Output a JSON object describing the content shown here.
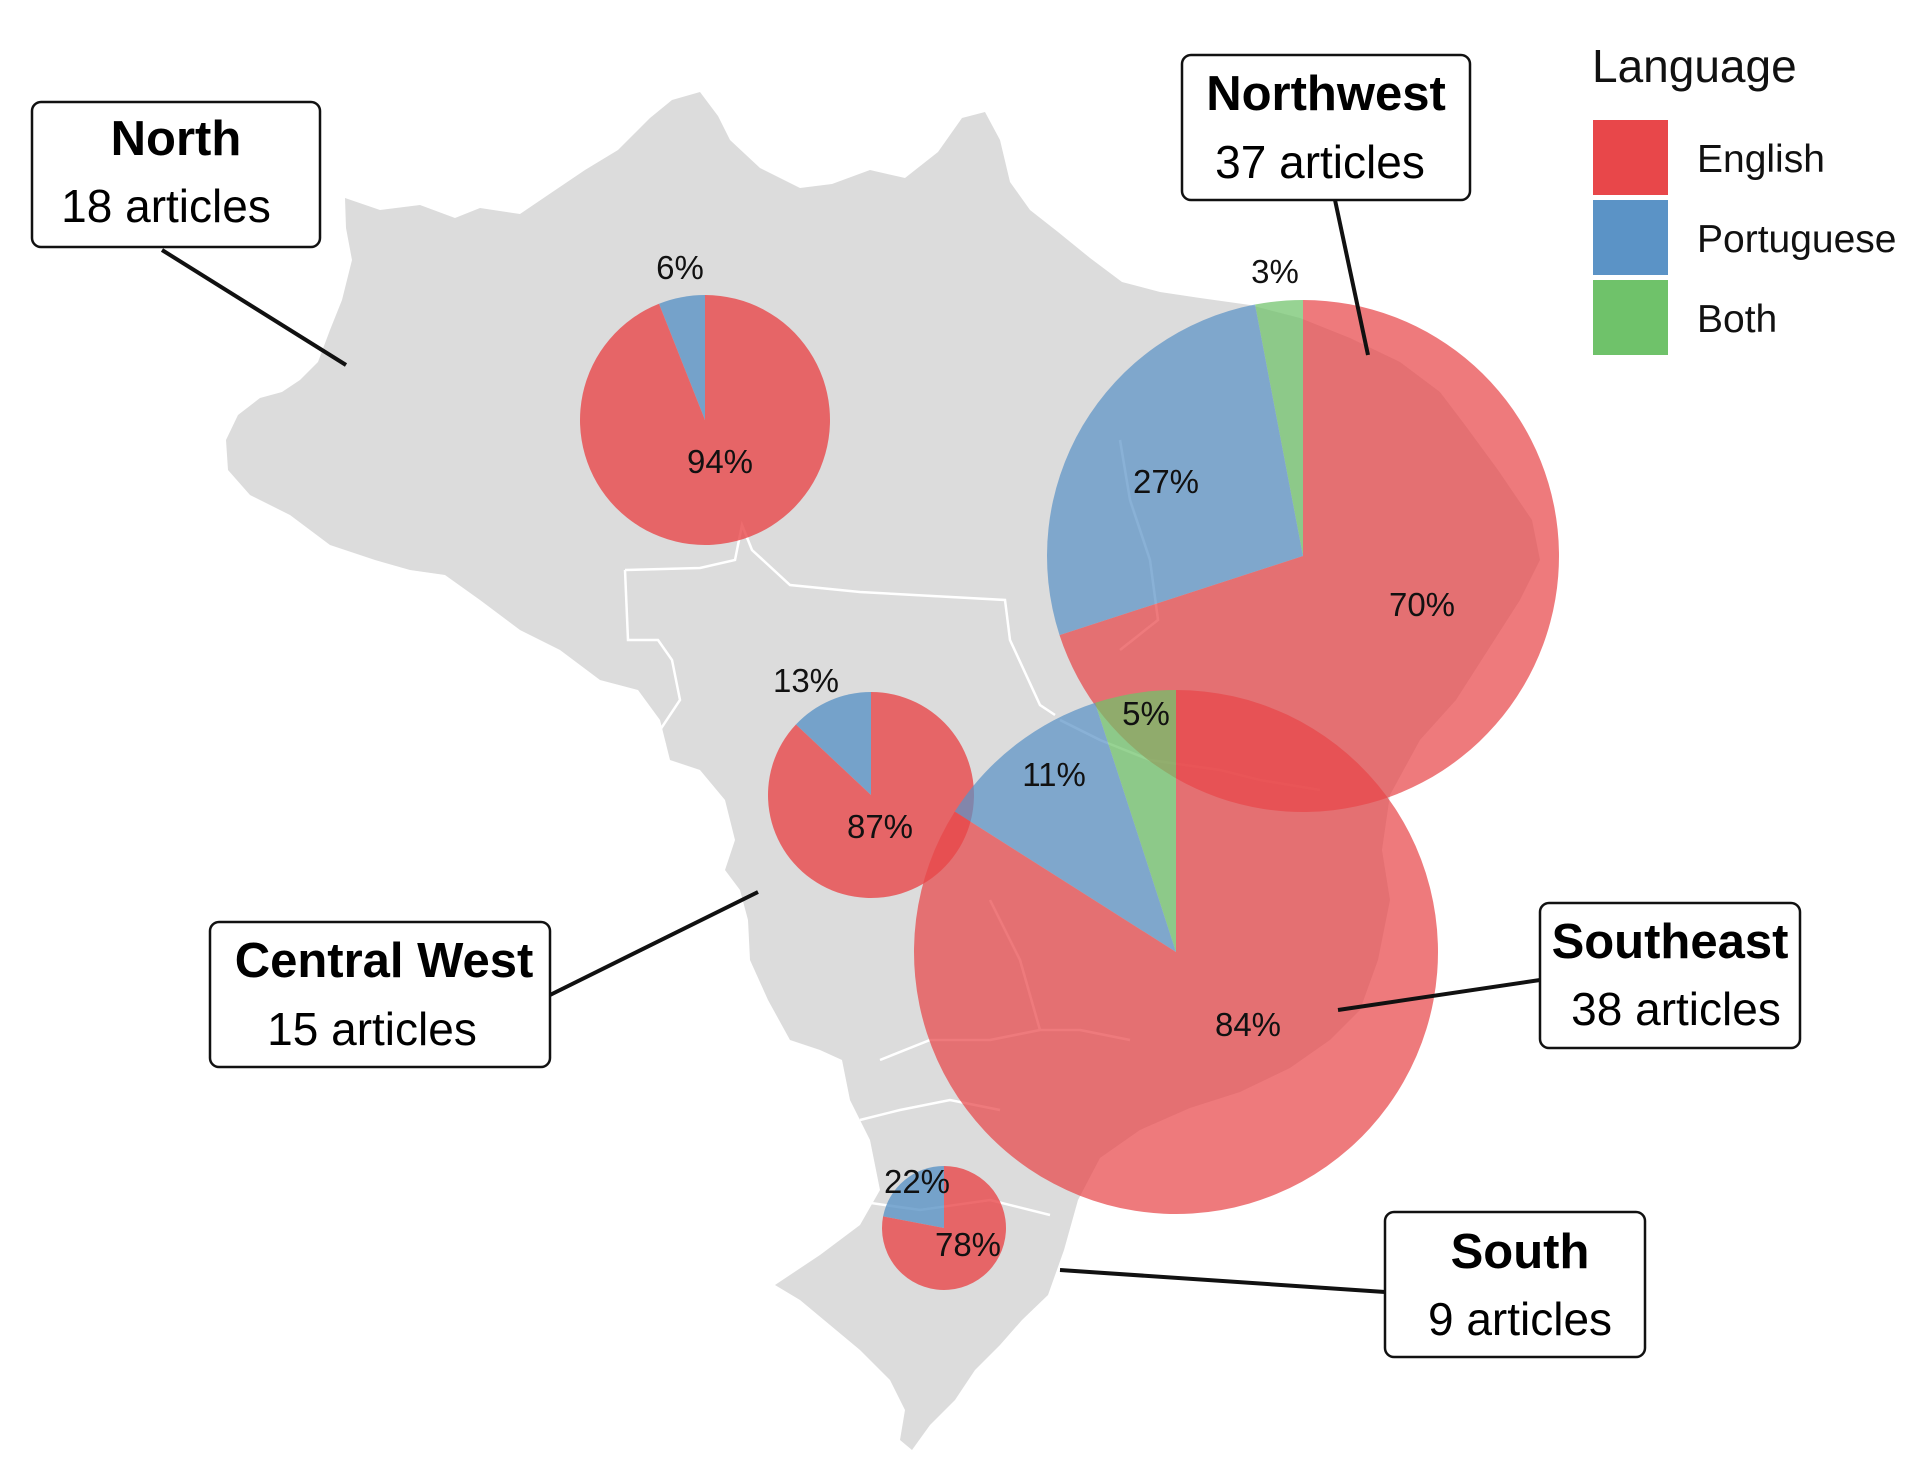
{
  "colors": {
    "english": "#e8474a",
    "portuguese": "#5b93c6",
    "both": "#6fc26a",
    "land": "#dcdcdc",
    "border": "#ffffff"
  },
  "legend": {
    "title": "Language",
    "items": [
      {
        "label": "English",
        "color": "#e8474a"
      },
      {
        "label": "Portuguese",
        "color": "#5b93c6"
      },
      {
        "label": "Both",
        "color": "#6fc26a"
      }
    ]
  },
  "regions": [
    {
      "name": "North",
      "count_text": "18 articles",
      "articles": 18,
      "slices": [
        {
          "language": "Portuguese",
          "percent": 6,
          "label": "6%"
        },
        {
          "language": "English",
          "percent": 94,
          "label": "94%"
        }
      ]
    },
    {
      "name": "Northwest",
      "count_text": "37 articles",
      "articles": 37,
      "slices": [
        {
          "language": "Both",
          "percent": 3,
          "label": "3%"
        },
        {
          "language": "Portuguese",
          "percent": 27,
          "label": "27%"
        },
        {
          "language": "English",
          "percent": 70,
          "label": "70%"
        }
      ]
    },
    {
      "name": "Central West",
      "count_text": "15 articles",
      "articles": 15,
      "slices": [
        {
          "language": "Portuguese",
          "percent": 13,
          "label": "13%"
        },
        {
          "language": "English",
          "percent": 87,
          "label": "87%"
        }
      ]
    },
    {
      "name": "Southeast",
      "count_text": "38 articles",
      "articles": 38,
      "slices": [
        {
          "language": "Both",
          "percent": 5,
          "label": "5%"
        },
        {
          "language": "Portuguese",
          "percent": 11,
          "label": "11%"
        },
        {
          "language": "English",
          "percent": 84,
          "label": "84%"
        }
      ]
    },
    {
      "name": "South",
      "count_text": "9 articles",
      "articles": 9,
      "slices": [
        {
          "language": "Portuguese",
          "percent": 22,
          "label": "22%"
        },
        {
          "language": "English",
          "percent": 78,
          "label": "78%"
        }
      ]
    }
  ]
}
